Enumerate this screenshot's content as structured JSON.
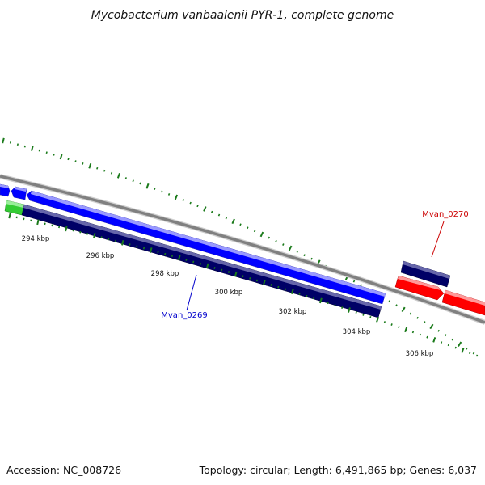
{
  "title": "Mycobacterium vanbaalenii PYR-1, complete genome",
  "footer": {
    "accession": "Accession: NC_008726",
    "summary": "Topology: circular; Length: 6,491,865 bp; Genes: 6,037"
  },
  "scale_ticks": [
    "294 kbp",
    "296 kbp",
    "298 kbp",
    "300 kbp",
    "302 kbp",
    "304 kbp",
    "306 kbp"
  ],
  "gene_labels": [
    {
      "name": "Mvan_0269",
      "color": "#0000cc"
    },
    {
      "name": "Mvan_0270",
      "color": "#cc0000"
    }
  ],
  "colors": {
    "backbone": "#888888",
    "minor_ticks": "#1a7a1a",
    "forward_gene": "#0000ff",
    "forward_gene_highlight": "#9999ff",
    "feature_dark": "#000066",
    "feature_dark_highlight": "#6666aa",
    "reverse_gene": "#ff0000",
    "reverse_gene_highlight": "#ff9999",
    "rna_feature": "#33cc33",
    "rna_feature_highlight": "#99ee99"
  }
}
